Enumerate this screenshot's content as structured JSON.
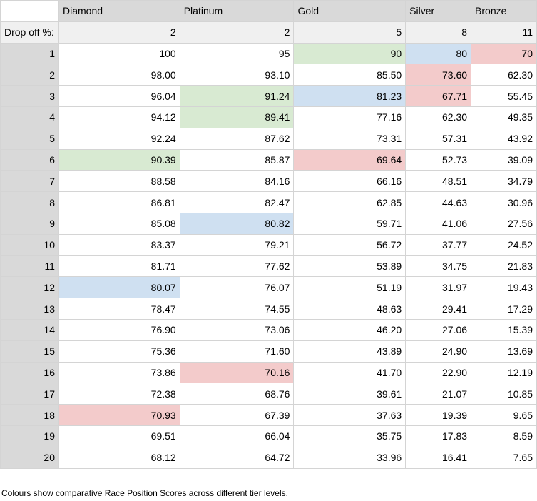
{
  "table": {
    "columns": [
      "Diamond",
      "Platinum",
      "Gold",
      "Silver",
      "Bronze"
    ],
    "drop_off": {
      "label": "Drop off %:",
      "values": [
        "2",
        "2",
        "5",
        "8",
        "11"
      ]
    },
    "rows": [
      {
        "n": "1",
        "cells": [
          "100",
          "95",
          "90",
          "80",
          "70"
        ]
      },
      {
        "n": "2",
        "cells": [
          "98.00",
          "93.10",
          "85.50",
          "73.60",
          "62.30"
        ]
      },
      {
        "n": "3",
        "cells": [
          "96.04",
          "91.24",
          "81.23",
          "67.71",
          "55.45"
        ]
      },
      {
        "n": "4",
        "cells": [
          "94.12",
          "89.41",
          "77.16",
          "62.30",
          "49.35"
        ]
      },
      {
        "n": "5",
        "cells": [
          "92.24",
          "87.62",
          "73.31",
          "57.31",
          "43.92"
        ]
      },
      {
        "n": "6",
        "cells": [
          "90.39",
          "85.87",
          "69.64",
          "52.73",
          "39.09"
        ]
      },
      {
        "n": "7",
        "cells": [
          "88.58",
          "84.16",
          "66.16",
          "48.51",
          "34.79"
        ]
      },
      {
        "n": "8",
        "cells": [
          "86.81",
          "82.47",
          "62.85",
          "44.63",
          "30.96"
        ]
      },
      {
        "n": "9",
        "cells": [
          "85.08",
          "80.82",
          "59.71",
          "41.06",
          "27.56"
        ]
      },
      {
        "n": "10",
        "cells": [
          "83.37",
          "79.21",
          "56.72",
          "37.77",
          "24.52"
        ]
      },
      {
        "n": "11",
        "cells": [
          "81.71",
          "77.62",
          "53.89",
          "34.75",
          "21.83"
        ]
      },
      {
        "n": "12",
        "cells": [
          "80.07",
          "76.07",
          "51.19",
          "31.97",
          "19.43"
        ]
      },
      {
        "n": "13",
        "cells": [
          "78.47",
          "74.55",
          "48.63",
          "29.41",
          "17.29"
        ]
      },
      {
        "n": "14",
        "cells": [
          "76.90",
          "73.06",
          "46.20",
          "27.06",
          "15.39"
        ]
      },
      {
        "n": "15",
        "cells": [
          "75.36",
          "71.60",
          "43.89",
          "24.90",
          "13.69"
        ]
      },
      {
        "n": "16",
        "cells": [
          "73.86",
          "70.16",
          "41.70",
          "22.90",
          "12.19"
        ]
      },
      {
        "n": "17",
        "cells": [
          "72.38",
          "68.76",
          "39.61",
          "21.07",
          "10.85"
        ]
      },
      {
        "n": "18",
        "cells": [
          "70.93",
          "67.39",
          "37.63",
          "19.39",
          "9.65"
        ]
      },
      {
        "n": "19",
        "cells": [
          "69.51",
          "66.04",
          "35.75",
          "17.83",
          "8.59"
        ]
      },
      {
        "n": "20",
        "cells": [
          "68.12",
          "64.72",
          "33.96",
          "16.41",
          "7.65"
        ]
      }
    ],
    "highlights": [
      {
        "row": 1,
        "col": 2,
        "color": "green"
      },
      {
        "row": 1,
        "col": 3,
        "color": "blue"
      },
      {
        "row": 1,
        "col": 4,
        "color": "red"
      },
      {
        "row": 2,
        "col": 3,
        "color": "red"
      },
      {
        "row": 3,
        "col": 1,
        "color": "green"
      },
      {
        "row": 3,
        "col": 2,
        "color": "blue"
      },
      {
        "row": 3,
        "col": 3,
        "color": "red"
      },
      {
        "row": 4,
        "col": 1,
        "color": "green"
      },
      {
        "row": 6,
        "col": 0,
        "color": "green"
      },
      {
        "row": 6,
        "col": 2,
        "color": "red"
      },
      {
        "row": 9,
        "col": 1,
        "color": "blue"
      },
      {
        "row": 12,
        "col": 0,
        "color": "blue"
      },
      {
        "row": 16,
        "col": 1,
        "color": "red"
      },
      {
        "row": 18,
        "col": 0,
        "color": "red"
      }
    ],
    "highlight_colors": {
      "green": "#d8ead2",
      "blue": "#cfe0f1",
      "red": "#f3cbcb"
    }
  },
  "caption": "Colours show comparative Race Position Scores across different tier levels."
}
